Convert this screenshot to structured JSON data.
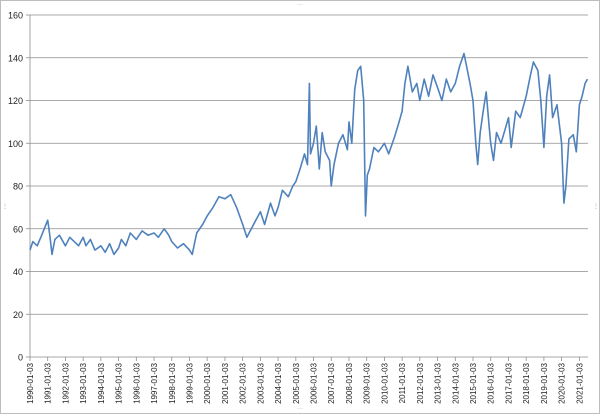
{
  "chart_data": {
    "type": "line",
    "title": "",
    "xlabel": "",
    "ylabel": "",
    "ylim": [
      0,
      160
    ],
    "yticks": [
      0,
      20,
      40,
      60,
      80,
      100,
      120,
      140,
      160
    ],
    "grid": "horizontal",
    "legend": "none",
    "xlim": [
      "1990-01-03",
      "2021-06-30"
    ],
    "xtick_labels": [
      "1990-01-03",
      "1991-01-03",
      "1992-01-03",
      "1993-01-03",
      "1994-01-03",
      "1995-01-03",
      "1996-01-03",
      "1997-01-03",
      "1998-01-03",
      "1999-01-03",
      "2000-01-03",
      "2001-01-03",
      "2002-01-03",
      "2003-01-03",
      "2004-01-03",
      "2005-01-03",
      "2006-01-03",
      "2007-01-03",
      "2008-01-03",
      "2009-01-03",
      "2010-01-03",
      "2011-01-03",
      "2012-01-03",
      "2013-01-03",
      "2014-01-03",
      "2015-01-03",
      "2016-01-03",
      "2017-01-03",
      "2018-01-03",
      "2019-01-03",
      "2020-01-03",
      "2021-01-03"
    ],
    "series": [
      {
        "color": "#4f81bd",
        "points": [
          [
            "1990-01-03",
            50
          ],
          [
            "1990-03-01",
            54
          ],
          [
            "1990-06-01",
            52
          ],
          [
            "1990-09-01",
            57
          ],
          [
            "1991-01-03",
            64
          ],
          [
            "1991-02-15",
            57
          ],
          [
            "1991-04-01",
            48
          ],
          [
            "1991-06-01",
            55
          ],
          [
            "1991-09-01",
            57
          ],
          [
            "1992-01-03",
            52
          ],
          [
            "1992-04-01",
            56
          ],
          [
            "1992-07-01",
            54
          ],
          [
            "1992-10-01",
            52
          ],
          [
            "1993-01-03",
            56
          ],
          [
            "1993-03-01",
            52
          ],
          [
            "1993-06-01",
            55
          ],
          [
            "1993-09-01",
            50
          ],
          [
            "1994-01-03",
            52
          ],
          [
            "1994-04-01",
            49
          ],
          [
            "1994-07-01",
            53
          ],
          [
            "1994-10-01",
            48
          ],
          [
            "1995-01-03",
            51
          ],
          [
            "1995-03-01",
            55
          ],
          [
            "1995-06-01",
            52
          ],
          [
            "1995-09-01",
            58
          ],
          [
            "1996-01-03",
            55
          ],
          [
            "1996-05-01",
            59
          ],
          [
            "1996-09-01",
            57
          ],
          [
            "1997-01-03",
            58
          ],
          [
            "1997-04-01",
            56
          ],
          [
            "1997-08-01",
            60
          ],
          [
            "1997-11-01",
            57
          ],
          [
            "1998-01-03",
            54
          ],
          [
            "1998-05-01",
            51
          ],
          [
            "1998-09-01",
            53
          ],
          [
            "1999-01-03",
            50
          ],
          [
            "1999-03-01",
            48
          ],
          [
            "1999-06-01",
            58
          ],
          [
            "1999-10-01",
            62
          ],
          [
            "2000-01-03",
            66
          ],
          [
            "2000-05-01",
            70
          ],
          [
            "2000-09-01",
            75
          ],
          [
            "2001-01-03",
            74
          ],
          [
            "2001-05-01",
            76
          ],
          [
            "2001-09-01",
            70
          ],
          [
            "2002-01-03",
            62
          ],
          [
            "2002-04-01",
            56
          ],
          [
            "2002-07-01",
            60
          ],
          [
            "2002-10-01",
            64
          ],
          [
            "2003-01-03",
            68
          ],
          [
            "2003-04-01",
            62
          ],
          [
            "2003-08-01",
            72
          ],
          [
            "2003-11-01",
            66
          ],
          [
            "2004-01-03",
            70
          ],
          [
            "2004-04-01",
            78
          ],
          [
            "2004-08-01",
            75
          ],
          [
            "2004-11-01",
            80
          ],
          [
            "2005-01-03",
            82
          ],
          [
            "2005-04-01",
            88
          ],
          [
            "2005-07-01",
            95
          ],
          [
            "2005-09-01",
            90
          ],
          [
            "2005-10-10",
            128
          ],
          [
            "2005-11-01",
            95
          ],
          [
            "2006-01-03",
            100
          ],
          [
            "2006-03-01",
            108
          ],
          [
            "2006-05-01",
            88
          ],
          [
            "2006-07-01",
            105
          ],
          [
            "2006-09-01",
            96
          ],
          [
            "2006-12-01",
            92
          ],
          [
            "2007-01-03",
            80
          ],
          [
            "2007-03-01",
            90
          ],
          [
            "2007-06-01",
            100
          ],
          [
            "2007-09-01",
            104
          ],
          [
            "2007-12-01",
            97
          ],
          [
            "2008-01-03",
            110
          ],
          [
            "2008-03-01",
            100
          ],
          [
            "2008-05-01",
            125
          ],
          [
            "2008-07-01",
            134
          ],
          [
            "2008-09-01",
            136
          ],
          [
            "2008-11-01",
            120
          ],
          [
            "2008-12-10",
            66
          ],
          [
            "2009-01-15",
            85
          ],
          [
            "2009-03-01",
            88
          ],
          [
            "2009-06-01",
            98
          ],
          [
            "2009-09-01",
            96
          ],
          [
            "2010-01-03",
            100
          ],
          [
            "2010-04-01",
            95
          ],
          [
            "2010-08-01",
            103
          ],
          [
            "2010-11-01",
            110
          ],
          [
            "2011-01-03",
            115
          ],
          [
            "2011-03-01",
            128
          ],
          [
            "2011-05-01",
            136
          ],
          [
            "2011-08-01",
            124
          ],
          [
            "2011-11-01",
            128
          ],
          [
            "2012-01-03",
            120
          ],
          [
            "2012-04-01",
            130
          ],
          [
            "2012-07-01",
            122
          ],
          [
            "2012-10-01",
            132
          ],
          [
            "2013-01-03",
            126
          ],
          [
            "2013-04-01",
            120
          ],
          [
            "2013-07-01",
            130
          ],
          [
            "2013-10-01",
            124
          ],
          [
            "2014-01-03",
            128
          ],
          [
            "2014-04-01",
            136
          ],
          [
            "2014-07-01",
            142
          ],
          [
            "2014-09-01",
            135
          ],
          [
            "2014-11-01",
            128
          ],
          [
            "2015-01-03",
            120
          ],
          [
            "2015-03-01",
            100
          ],
          [
            "2015-04-10",
            90
          ],
          [
            "2015-06-01",
            105
          ],
          [
            "2015-08-01",
            115
          ],
          [
            "2015-10-01",
            124
          ],
          [
            "2015-12-01",
            108
          ],
          [
            "2016-01-03",
            100
          ],
          [
            "2016-03-01",
            92
          ],
          [
            "2016-05-01",
            105
          ],
          [
            "2016-08-01",
            100
          ],
          [
            "2016-11-01",
            107
          ],
          [
            "2017-01-03",
            112
          ],
          [
            "2017-03-01",
            98
          ],
          [
            "2017-06-01",
            115
          ],
          [
            "2017-09-01",
            112
          ],
          [
            "2018-01-03",
            122
          ],
          [
            "2018-04-01",
            132
          ],
          [
            "2018-06-01",
            138
          ],
          [
            "2018-09-01",
            134
          ],
          [
            "2018-11-01",
            120
          ],
          [
            "2019-01-03",
            98
          ],
          [
            "2019-03-01",
            122
          ],
          [
            "2019-05-01",
            132
          ],
          [
            "2019-07-01",
            112
          ],
          [
            "2019-10-01",
            118
          ],
          [
            "2020-01-03",
            100
          ],
          [
            "2020-02-20",
            72
          ],
          [
            "2020-04-01",
            80
          ],
          [
            "2020-06-01",
            102
          ],
          [
            "2020-09-01",
            104
          ],
          [
            "2020-11-01",
            96
          ],
          [
            "2021-01-03",
            118
          ],
          [
            "2021-03-01",
            122
          ],
          [
            "2021-05-01",
            128
          ],
          [
            "2021-06-20",
            130
          ]
        ]
      }
    ]
  }
}
